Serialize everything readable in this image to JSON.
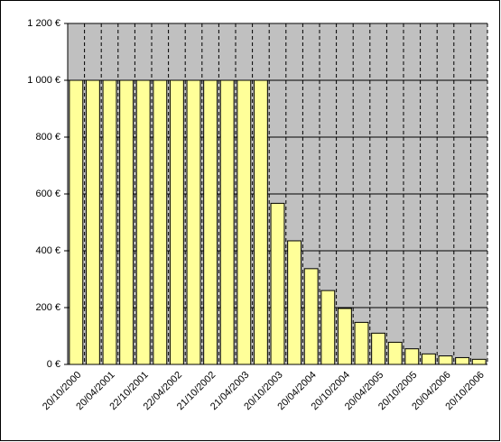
{
  "chart_data": {
    "type": "bar",
    "categories": [
      "20/10/2000",
      null,
      "20/04/2001",
      null,
      "22/10/2001",
      null,
      "22/04/2002",
      null,
      "21/10/2002",
      null,
      "21/04/2003",
      null,
      "20/10/2003",
      null,
      "20/04/2004",
      null,
      "20/10/2004",
      null,
      "20/04/2005",
      null,
      "20/10/2005",
      null,
      "20/04/2006",
      null,
      "20/10/2006"
    ],
    "values": [
      1000,
      1000,
      1000,
      1000,
      1000,
      1000,
      1000,
      1000,
      1000,
      1000,
      1000,
      1000,
      567,
      435,
      337,
      260,
      197,
      148,
      110,
      78,
      55,
      37,
      30,
      24,
      18
    ],
    "color": "#ffff99",
    "ylim": [
      0,
      1200
    ],
    "yticks": [
      {
        "value": 0,
        "label": "0 €"
      },
      {
        "value": 200,
        "label": "200 €"
      },
      {
        "value": 400,
        "label": "400 €"
      },
      {
        "value": 600,
        "label": "600 €"
      },
      {
        "value": 800,
        "label": "800 €"
      },
      {
        "value": 1000,
        "label": "1 000 €"
      },
      {
        "value": 1200,
        "label": "1 200 €"
      }
    ],
    "grid": true
  }
}
